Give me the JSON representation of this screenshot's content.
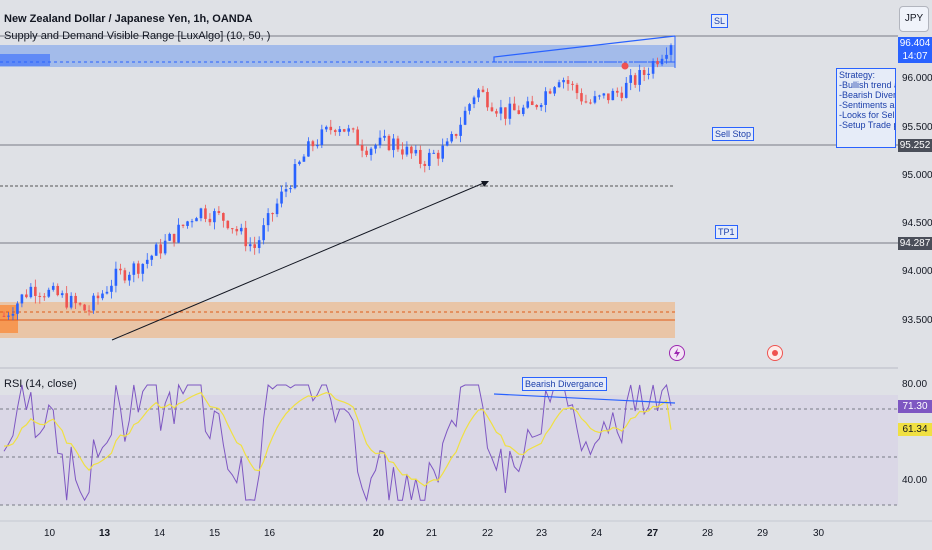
{
  "header": {
    "title": "New Zealand Dollar / Japanese Yen, 1h, OANDA",
    "indicator": "Supply and Demand Visible Range [LuxAlgo] (10, 50, )",
    "currency_button": "JPY"
  },
  "labels": {
    "sl": "SL",
    "sell_stop": "Sell Stop",
    "tp1": "TP1",
    "bearish_divergence": "Bearish Divergance",
    "strategy_lines": [
      "Strategy:",
      "-Bullish trend abo",
      "-Bearish Divergan",
      "-Sentiments are b",
      "-Looks for Sell Se",
      "-Setup Trade plan"
    ]
  },
  "price_tags": {
    "top_price": "96.404",
    "countdown": "14:07",
    "sell_stop": "95.252",
    "tp1": "94.287"
  },
  "rsi": {
    "title": "RSI (14, close)",
    "value": "71.30",
    "ma_value": "61.34"
  },
  "colors": {
    "background": "#dfe1e6",
    "bull": "#2962ff",
    "bear": "#ef5350",
    "supply_zone": "#5b8def",
    "demand_zone": "#f7a35c",
    "rsi_line": "#7e57c2",
    "rsi_ma": "#f0e042"
  },
  "chart_data": [
    {
      "type": "candlestick",
      "title": "New Zealand Dollar / Japanese Yen, 1h, OANDA",
      "x_ticks": [
        "10",
        "13",
        "14",
        "15",
        "16",
        "20",
        "21",
        "22",
        "23",
        "24",
        "27",
        "28",
        "29",
        "30"
      ],
      "y_ticks": [
        93.5,
        94.0,
        94.5,
        95.0,
        95.5,
        96.0
      ],
      "y_tick_labels": [
        "93.500",
        "94.000",
        "94.500",
        "95.000",
        "95.500",
        "96.000"
      ],
      "ylim": [
        93.3,
        96.45
      ],
      "daily_path": [
        {
          "day": "9",
          "price": 93.55
        },
        {
          "day": "10",
          "price": 93.85
        },
        {
          "day": "12",
          "price": 93.75
        },
        {
          "day": "13",
          "price": 93.6
        },
        {
          "day": "13.5",
          "price": 93.95
        },
        {
          "day": "14",
          "price": 94.1
        },
        {
          "day": "14.5",
          "price": 94.35
        },
        {
          "day": "15",
          "price": 94.65
        },
        {
          "day": "15.5",
          "price": 94.55
        },
        {
          "day": "16",
          "price": 94.25
        },
        {
          "day": "16.5",
          "price": 94.8
        },
        {
          "day": "17",
          "price": 95.3
        },
        {
          "day": "20",
          "price": 95.55
        },
        {
          "day": "20.5",
          "price": 95.3
        },
        {
          "day": "21",
          "price": 95.35
        },
        {
          "day": "21.5",
          "price": 95.15
        },
        {
          "day": "22",
          "price": 95.3
        },
        {
          "day": "22.1",
          "price": 95.9
        },
        {
          "day": "22.5",
          "price": 95.65
        },
        {
          "day": "23",
          "price": 95.7
        },
        {
          "day": "23.5",
          "price": 96.05
        },
        {
          "day": "24",
          "price": 95.75
        },
        {
          "day": "24.5",
          "price": 95.85
        },
        {
          "day": "25",
          "price": 96.05
        },
        {
          "day": "27",
          "price": 96.4
        }
      ],
      "levels": {
        "supply_zone": [
          96.05,
          96.35
        ],
        "demand_zone": [
          93.4,
          93.7
        ],
        "sell_stop": 95.252,
        "tp1": 94.287,
        "dashed_level": 94.85
      }
    },
    {
      "type": "line",
      "title": "RSI (14, close)",
      "y_ticks": [
        40,
        80
      ],
      "y_tick_labels": [
        "40.00",
        "80.00"
      ],
      "ylim": [
        25,
        85
      ],
      "last_rsi": 71.3,
      "last_ma": 61.34,
      "bands": [
        30,
        50,
        70
      ]
    }
  ]
}
